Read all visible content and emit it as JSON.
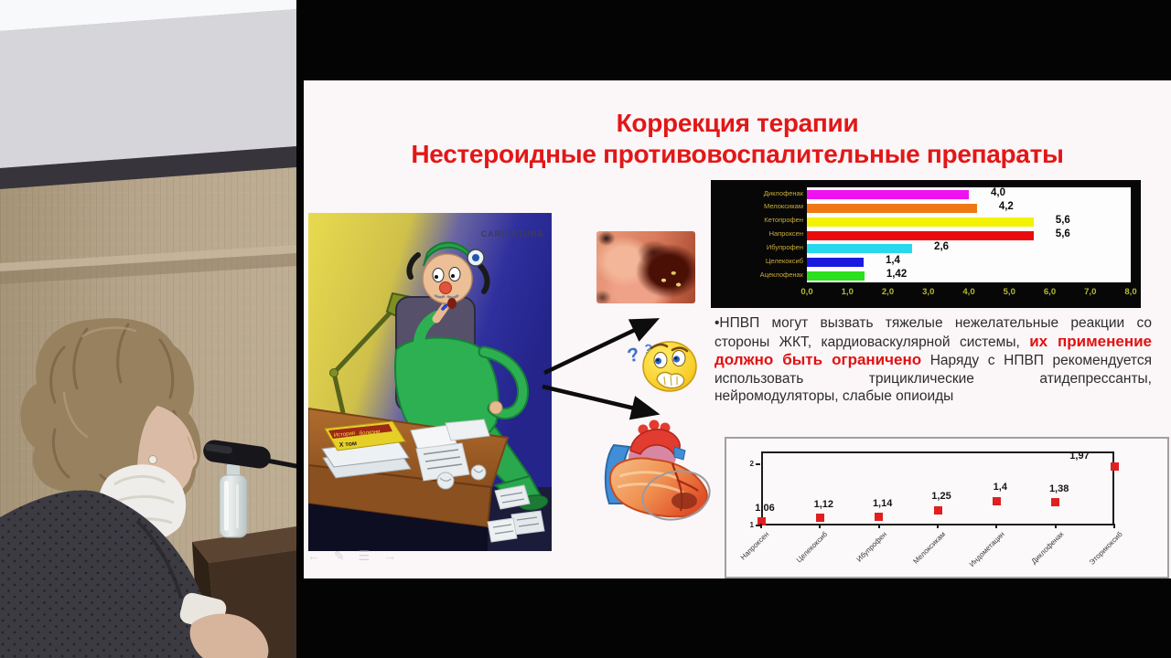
{
  "slide": {
    "title_line1": "Коррекция терапии",
    "title_line2": "Нестероидные противовоспалительные препараты",
    "title_color": "#e21717",
    "cartoon": {
      "caption": "CARICATURA",
      "book_line1": "История",
      "book_line2": "болезни",
      "book_line3": "X том"
    },
    "emoji": {
      "q1": "?",
      "q2": "?"
    },
    "body": {
      "seg1": "•НПВП могут вызвать тяжелые нежелательные реакции со стороны ЖКТ, кардиоваскулярной системы, ",
      "highlight": "их применение должно быть ограничено",
      "seg2": " Наряду с НПВП рекомендуется использовать трициклические атидепрессанты, нейромодуляторы, слабые опиоиды"
    },
    "highlight_color": "#e01111",
    "toolbar": [
      {
        "name": "prev-slide-button",
        "glyph": "←"
      },
      {
        "name": "pen-tool-button",
        "glyph": "✎"
      },
      {
        "name": "slide-menu-button",
        "glyph": "☰"
      },
      {
        "name": "next-slide-button",
        "glyph": "→"
      }
    ]
  },
  "chart_data": [
    {
      "type": "bar",
      "orientation": "horizontal",
      "title": "",
      "categories": [
        "Диклофенак",
        "Мелоксикам",
        "Кетопрофен",
        "Напроксен",
        "Ибупрофен",
        "Целекоксиб",
        "Ацеклофенак"
      ],
      "values": [
        4.0,
        4.2,
        5.6,
        5.6,
        2.6,
        1.4,
        1.42
      ],
      "value_labels": [
        "4,0",
        "4,2",
        "5,6",
        "5,6",
        "2,6",
        "1,4",
        "1,42"
      ],
      "bar_colors": [
        "#ee12ee",
        "#f07814",
        "#f2f202",
        "#ea0c0c",
        "#28d8ec",
        "#1a1adf",
        "#2ce01e"
      ],
      "x_ticks": [
        "0,0",
        "1,0",
        "2,0",
        "3,0",
        "4,0",
        "5,0",
        "6,0",
        "7,0",
        "8,0"
      ],
      "xlim": [
        0,
        8
      ],
      "grid": false,
      "legend": false,
      "panel_bg": "#070707",
      "plot_bg": "#fdfdfd"
    },
    {
      "type": "scatter",
      "categories": [
        "Напроксен",
        "Целекоксиб",
        "Ибупрофен",
        "Мелоксикам",
        "Индометацин",
        "Диклофенак",
        "Эторикоксиб"
      ],
      "values": [
        1.06,
        1.12,
        1.14,
        1.25,
        1.4,
        1.38,
        1.97
      ],
      "value_labels": [
        "1,06",
        "1,12",
        "1,14",
        "1,25",
        "1,4",
        "1,38",
        "1,97"
      ],
      "marker": "square",
      "marker_color": "#e02020",
      "y_ticks": [
        "1",
        "2"
      ],
      "ylim": [
        1,
        2
      ],
      "grid": false,
      "legend": false
    }
  ]
}
